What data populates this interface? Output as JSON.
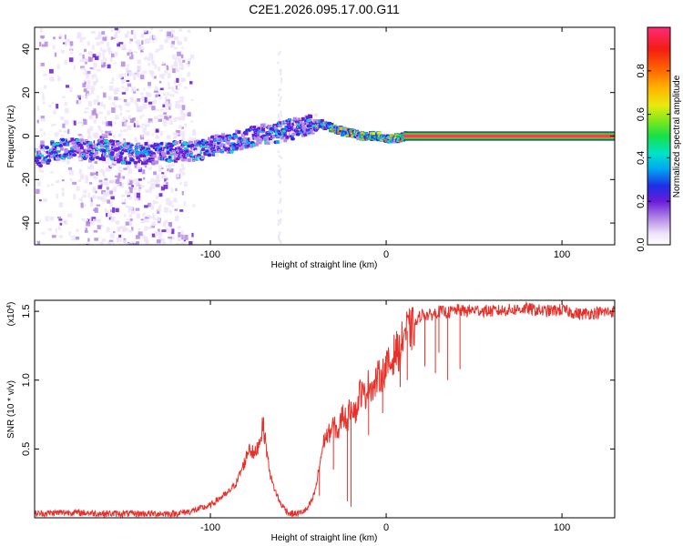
{
  "figure_title": "C2E1.2026.095.17.00.G11",
  "chart_data": [
    {
      "type": "heatmap",
      "name": "spectrogram",
      "xlabel": "Height of straight line (km)",
      "ylabel": "Frequency (Hz)",
      "xlim": [
        -200,
        130
      ],
      "ylim": [
        -50,
        50
      ],
      "x_ticks": [
        -100,
        0,
        100
      ],
      "x_tick_labels": [
        "-100",
        "0",
        "100"
      ],
      "y_ticks": [
        -40,
        -20,
        0,
        20,
        40
      ],
      "y_tick_labels": [
        "-40",
        "-20",
        "0",
        "20",
        "40"
      ],
      "ridge": {
        "x": [
          -200,
          -190,
          -180,
          -170,
          -160,
          -150,
          -140,
          -130,
          -120,
          -110,
          -100,
          -90,
          -80,
          -70,
          -60,
          -55,
          -50,
          -45,
          -40,
          -35,
          -30,
          -25,
          -20,
          -15,
          -10,
          -5,
          0,
          5,
          10,
          130
        ],
        "y": [
          -10,
          -7,
          -5,
          -7,
          -6,
          -8,
          -8,
          -8,
          -7,
          -7,
          -5,
          -3,
          -1,
          1,
          2,
          3,
          4,
          5,
          6,
          5,
          3,
          2,
          1,
          0,
          0,
          0,
          -1,
          -1,
          0,
          0
        ]
      },
      "colorbar": {
        "label": "Normalized spectral amplitude",
        "range": [
          0,
          1
        ],
        "ticks": [
          0.0,
          0.2,
          0.4,
          0.6,
          0.8
        ],
        "tick_labels": [
          "0.0",
          "0.2",
          "0.4",
          "0.6",
          "0.8"
        ]
      }
    },
    {
      "type": "line",
      "name": "snr",
      "xlabel": "Height of straight line (km)",
      "ylabel": "SNR (10 * v/v)",
      "y_multiplier_label": "(x10",
      "y_multiplier_exp": "4",
      "y_multiplier_close": ")",
      "xlim": [
        -200,
        130
      ],
      "ylim": [
        0,
        15800
      ],
      "x_ticks": [
        -100,
        0,
        100
      ],
      "x_tick_labels": [
        "-100",
        "0",
        "100"
      ],
      "y_ticks": [
        5000,
        10000,
        15000
      ],
      "y_tick_labels": [
        "0.5",
        "1.0",
        "1.5"
      ],
      "color": "#e8302a",
      "series": [
        {
          "name": "SNR",
          "x": [
            -200,
            -180,
            -160,
            -140,
            -120,
            -110,
            -100,
            -95,
            -90,
            -85,
            -80,
            -78,
            -75,
            -72,
            -70,
            -67,
            -65,
            -62,
            -60,
            -55,
            -50,
            -45,
            -42,
            -40,
            -37,
            -35,
            -33,
            -30,
            -27,
            -25,
            -22,
            -20,
            -17,
            -15,
            -12,
            -10,
            -7,
            -5,
            -2,
            0,
            3,
            5,
            8,
            10,
            15,
            20,
            25,
            30,
            35,
            40,
            45,
            50,
            60,
            70,
            80,
            90,
            100,
            110,
            120,
            130
          ],
          "y": [
            300,
            400,
            300,
            300,
            300,
            500,
            900,
            1400,
            1800,
            2600,
            4200,
            5200,
            4500,
            5600,
            6800,
            4000,
            2600,
            1600,
            1000,
            300,
            300,
            600,
            1300,
            2200,
            4500,
            5800,
            6000,
            6700,
            6200,
            7600,
            7000,
            8400,
            7600,
            9200,
            8800,
            9800,
            9400,
            10200,
            10400,
            11000,
            11200,
            12200,
            12000,
            13500,
            13700,
            14800,
            14700,
            15000,
            14900,
            15100,
            15000,
            15100,
            15000,
            15100,
            15200,
            15000,
            15100,
            14800,
            14900,
            15000
          ]
        }
      ],
      "dips": [
        {
          "x": -50,
          "y": 200
        },
        {
          "x": -38,
          "y": 1600
        },
        {
          "x": -30,
          "y": 3500
        },
        {
          "x": -22,
          "y": 1200
        },
        {
          "x": -20,
          "y": 800
        },
        {
          "x": -10,
          "y": 6000
        },
        {
          "x": -2,
          "y": 7600
        },
        {
          "x": 8,
          "y": 9500
        },
        {
          "x": 12,
          "y": 10000
        },
        {
          "x": 22,
          "y": 11000
        },
        {
          "x": 28,
          "y": 10500
        },
        {
          "x": 30,
          "y": 12000
        },
        {
          "x": 35,
          "y": 10000
        },
        {
          "x": 42,
          "y": 10800
        }
      ]
    }
  ]
}
